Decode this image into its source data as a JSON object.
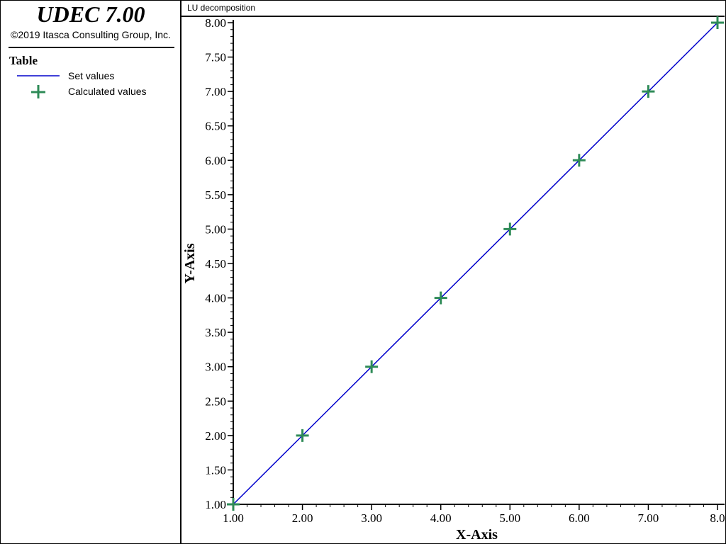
{
  "app": {
    "title": "UDEC 7.00",
    "copyright": "©2019 Itasca Consulting Group, Inc."
  },
  "legend": {
    "title": "Table",
    "items": [
      {
        "label": "Set values",
        "kind": "line",
        "color": "#0000cc"
      },
      {
        "label": "Calculated values",
        "kind": "plus-marker",
        "color": "#2e8b57"
      }
    ]
  },
  "plot": {
    "title": "LU decomposition"
  },
  "chart_data": {
    "type": "line",
    "title": "LU decomposition",
    "xlabel": "X-Axis",
    "ylabel": "Y-Axis",
    "xlim": [
      1,
      8
    ],
    "ylim": [
      1,
      8
    ],
    "x_ticks": [
      "1.00",
      "2.00",
      "3.00",
      "4.00",
      "5.00",
      "6.00",
      "7.00",
      "8.0"
    ],
    "y_ticks": [
      "1.00",
      "1.50",
      "2.00",
      "2.50",
      "3.00",
      "3.50",
      "4.00",
      "4.50",
      "5.00",
      "5.50",
      "6.00",
      "6.50",
      "7.00",
      "7.50",
      "8.00"
    ],
    "grid": false,
    "legend_placement": "left-sidebar",
    "series": [
      {
        "name": "Set values",
        "kind": "line",
        "color": "#0000cc",
        "x": [
          1,
          2,
          3,
          4,
          5,
          6,
          7,
          8
        ],
        "y": [
          1,
          2,
          3,
          4,
          5,
          6,
          7,
          8
        ]
      },
      {
        "name": "Calculated values",
        "kind": "plus-marker",
        "color": "#2e8b57",
        "x": [
          1,
          2,
          3,
          4,
          5,
          6,
          7,
          8
        ],
        "y": [
          1,
          2,
          3,
          4,
          5,
          6,
          7,
          8
        ]
      }
    ]
  }
}
